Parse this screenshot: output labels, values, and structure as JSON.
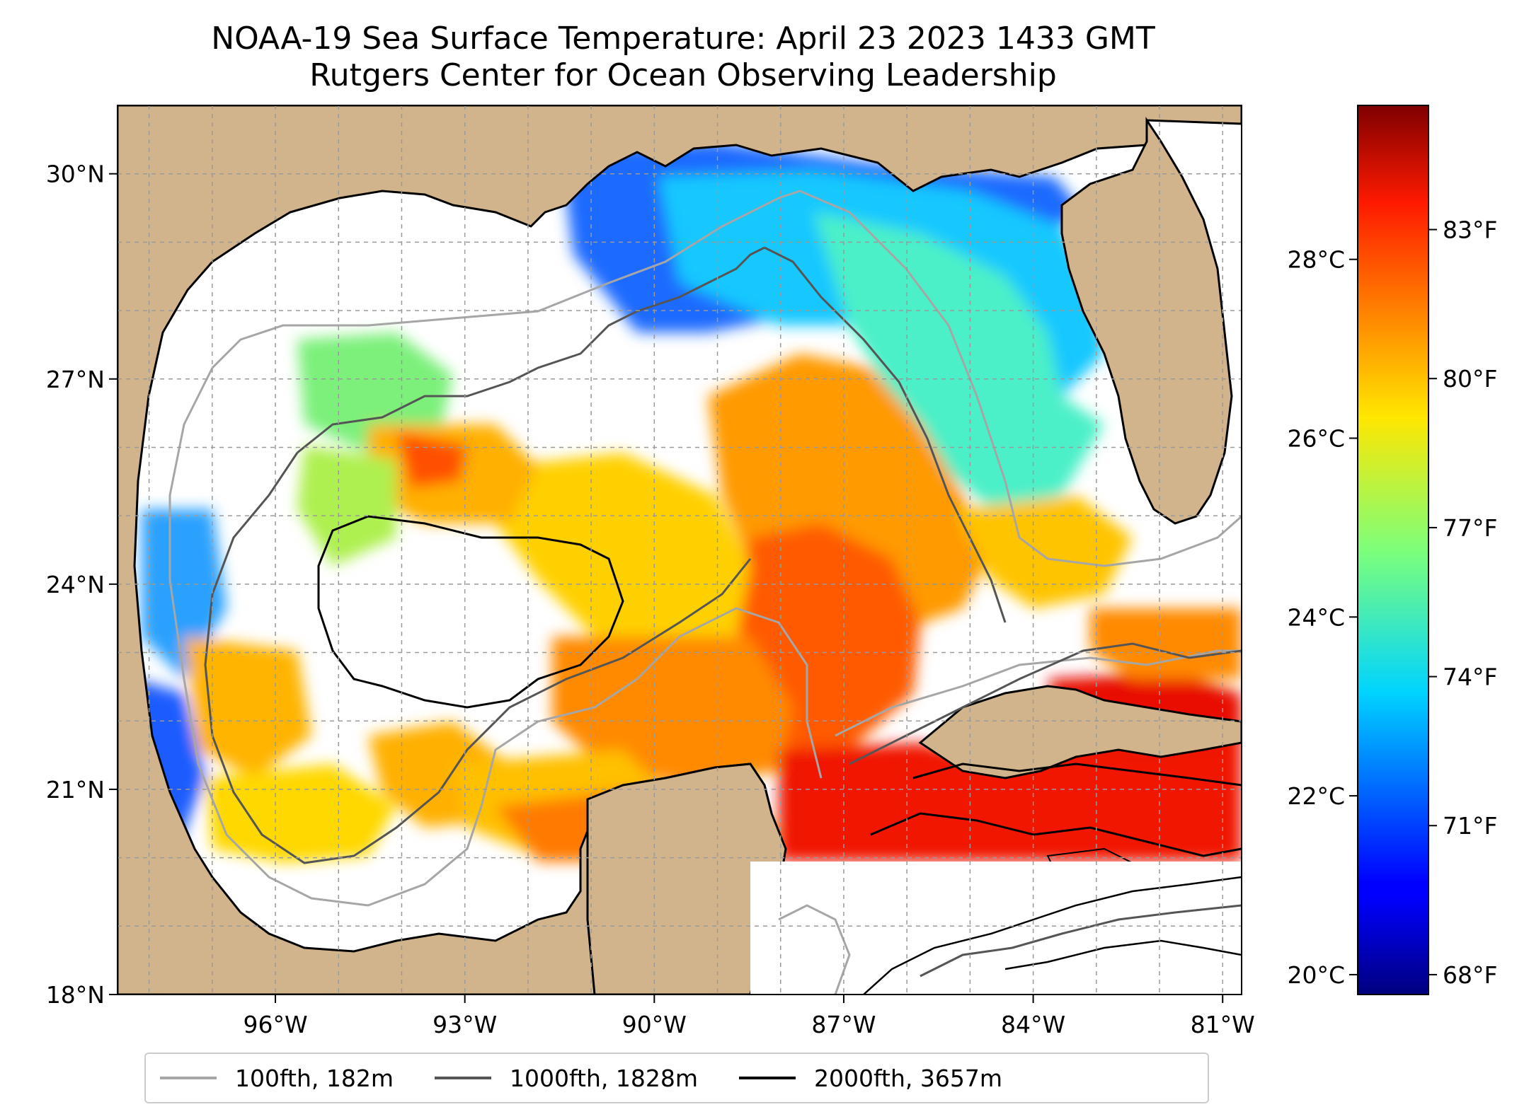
{
  "title": {
    "line1": "NOAA-19 Sea Surface Temperature: April 23 2023 1433 GMT",
    "line2": "Rutgers Center for Ocean Observing Leadership"
  },
  "map": {
    "lat_range": [
      18,
      31
    ],
    "lon_range": [
      -98.5,
      -80.7
    ],
    "lat_ticks": [
      {
        "value": 18,
        "label": "18°N"
      },
      {
        "value": 21,
        "label": "21°N"
      },
      {
        "value": 24,
        "label": "24°N"
      },
      {
        "value": 27,
        "label": "27°N"
      },
      {
        "value": 30,
        "label": "30°N"
      }
    ],
    "lon_ticks": [
      {
        "value": -96,
        "label": "96°W"
      },
      {
        "value": -93,
        "label": "93°W"
      },
      {
        "value": -90,
        "label": "90°W"
      },
      {
        "value": -87,
        "label": "87°W"
      },
      {
        "value": -84,
        "label": "84°W"
      },
      {
        "value": -81,
        "label": "81°W"
      }
    ],
    "land_color": "#d2b48c",
    "no_data_color": "#ffffff",
    "gridlines": true
  },
  "colorbar": {
    "colormap": "jet",
    "range_f": [
      67.6,
      85.5
    ],
    "celsius_ticks": [
      "20°C",
      "22°C",
      "24°C",
      "26°C",
      "28°C"
    ],
    "fahrenheit_ticks": [
      "68°F",
      "71°F",
      "74°F",
      "77°F",
      "80°F",
      "83°F"
    ]
  },
  "legend": {
    "placement": "bottom",
    "items": [
      {
        "label": "100fth, 182m",
        "color": "#a6a6a6"
      },
      {
        "label": "1000fth, 1828m",
        "color": "#555555"
      },
      {
        "label": "2000fth, 3657m",
        "color": "#000000"
      }
    ]
  }
}
